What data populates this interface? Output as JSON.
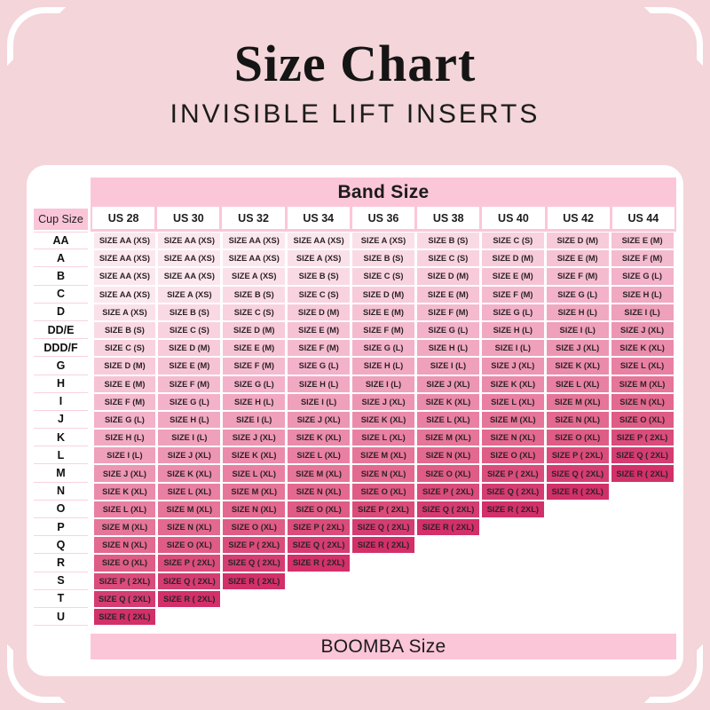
{
  "header": {
    "title": "Size Chart",
    "subtitle": "INVISIBLE LIFT INSERTS"
  },
  "table": {
    "band_size_label": "Band Size",
    "cup_size_label": "Cup Size",
    "boomba_size_label": "BOOMBA Size",
    "columns": [
      "US 28",
      "US 30",
      "US 32",
      "US 34",
      "US 36",
      "US 38",
      "US 40",
      "US 42",
      "US 44"
    ],
    "rows": [
      {
        "label": "AA",
        "cells": [
          "SIZE AA (XS)",
          "SIZE AA (XS)",
          "SIZE AA (XS)",
          "SIZE AA (XS)",
          "SIZE A (XS)",
          "SIZE B (S)",
          "SIZE C (S)",
          "SIZE D (M)",
          "SIZE E (M)"
        ]
      },
      {
        "label": "A",
        "cells": [
          "SIZE AA (XS)",
          "SIZE AA (XS)",
          "SIZE AA (XS)",
          "SIZE A (XS)",
          "SIZE B (S)",
          "SIZE C (S)",
          "SIZE D (M)",
          "SIZE E (M)",
          "SIZE F (M)"
        ]
      },
      {
        "label": "B",
        "cells": [
          "SIZE AA (XS)",
          "SIZE AA (XS)",
          "SIZE A (XS)",
          "SIZE B (S)",
          "SIZE C (S)",
          "SIZE D (M)",
          "SIZE E (M)",
          "SIZE F (M)",
          "SIZE G (L)"
        ]
      },
      {
        "label": "C",
        "cells": [
          "SIZE AA (XS)",
          "SIZE A (XS)",
          "SIZE B (S)",
          "SIZE C (S)",
          "SIZE D (M)",
          "SIZE E (M)",
          "SIZE F (M)",
          "SIZE G (L)",
          "SIZE H (L)"
        ]
      },
      {
        "label": "D",
        "cells": [
          "SIZE A (XS)",
          "SIZE B (S)",
          "SIZE C (S)",
          "SIZE D (M)",
          "SIZE E (M)",
          "SIZE F (M)",
          "SIZE G (L)",
          "SIZE H (L)",
          "SIZE I (L)"
        ]
      },
      {
        "label": "DD/E",
        "cells": [
          "SIZE B (S)",
          "SIZE C (S)",
          "SIZE D (M)",
          "SIZE E (M)",
          "SIZE F (M)",
          "SIZE G (L)",
          "SIZE H (L)",
          "SIZE I (L)",
          "SIZE J (XL)"
        ]
      },
      {
        "label": "DDD/F",
        "cells": [
          "SIZE C (S)",
          "SIZE D (M)",
          "SIZE E (M)",
          "SIZE F (M)",
          "SIZE G (L)",
          "SIZE H (L)",
          "SIZE I (L)",
          "SIZE J (XL)",
          "SIZE K (XL)"
        ]
      },
      {
        "label": "G",
        "cells": [
          "SIZE D (M)",
          "SIZE E (M)",
          "SIZE F (M)",
          "SIZE G (L)",
          "SIZE H (L)",
          "SIZE I (L)",
          "SIZE J (XL)",
          "SIZE K (XL)",
          "SIZE L (XL)"
        ]
      },
      {
        "label": "H",
        "cells": [
          "SIZE E (M)",
          "SIZE F (M)",
          "SIZE G (L)",
          "SIZE H (L)",
          "SIZE I (L)",
          "SIZE J (XL)",
          "SIZE K (XL)",
          "SIZE L (XL)",
          "SIZE M (XL)"
        ]
      },
      {
        "label": "I",
        "cells": [
          "SIZE F (M)",
          "SIZE G (L)",
          "SIZE H (L)",
          "SIZE I (L)",
          "SIZE J (XL)",
          "SIZE K (XL)",
          "SIZE L (XL)",
          "SIZE M (XL)",
          "SIZE N (XL)"
        ]
      },
      {
        "label": "J",
        "cells": [
          "SIZE G (L)",
          "SIZE H (L)",
          "SIZE I (L)",
          "SIZE J (XL)",
          "SIZE K (XL)",
          "SIZE L (XL)",
          "SIZE M (XL)",
          "SIZE N (XL)",
          "SIZE O (XL)"
        ]
      },
      {
        "label": "K",
        "cells": [
          "SIZE H (L)",
          "SIZE I (L)",
          "SIZE J (XL)",
          "SIZE K (XL)",
          "SIZE L (XL)",
          "SIZE M (XL)",
          "SIZE N (XL)",
          "SIZE O (XL)",
          "SIZE P ( 2XL)"
        ]
      },
      {
        "label": "L",
        "cells": [
          "SIZE I (L)",
          "SIZE J (XL)",
          "SIZE K (XL)",
          "SIZE L (XL)",
          "SIZE M (XL)",
          "SIZE N (XL)",
          "SIZE O (XL)",
          "SIZE P ( 2XL)",
          "SIZE Q ( 2XL)"
        ]
      },
      {
        "label": "M",
        "cells": [
          "SIZE J (XL)",
          "SIZE K (XL)",
          "SIZE L (XL)",
          "SIZE M (XL)",
          "SIZE N (XL)",
          "SIZE O (XL)",
          "SIZE P ( 2XL)",
          "SIZE Q ( 2XL)",
          "SIZE R ( 2XL)"
        ]
      },
      {
        "label": "N",
        "cells": [
          "SIZE K (XL)",
          "SIZE L (XL)",
          "SIZE M (XL)",
          "SIZE N (XL)",
          "SIZE O (XL)",
          "SIZE P ( 2XL)",
          "SIZE Q ( 2XL)",
          "SIZE R ( 2XL)",
          ""
        ]
      },
      {
        "label": "O",
        "cells": [
          "SIZE L (XL)",
          "SIZE M (XL)",
          "SIZE N (XL)",
          "SIZE O (XL)",
          "SIZE P ( 2XL)",
          "SIZE Q ( 2XL)",
          "SIZE R ( 2XL)",
          "",
          ""
        ]
      },
      {
        "label": "P",
        "cells": [
          "SIZE M (XL)",
          "SIZE N (XL)",
          "SIZE O (XL)",
          "SIZE P ( 2XL)",
          "SIZE Q ( 2XL)",
          "SIZE R ( 2XL)",
          "",
          "",
          ""
        ]
      },
      {
        "label": "Q",
        "cells": [
          "SIZE N (XL)",
          "SIZE O (XL)",
          "SIZE P ( 2XL)",
          "SIZE Q ( 2XL)",
          "SIZE R ( 2XL)",
          "",
          "",
          "",
          ""
        ]
      },
      {
        "label": "R",
        "cells": [
          "SIZE O (XL)",
          "SIZE P ( 2XL)",
          "SIZE Q ( 2XL)",
          "SIZE R ( 2XL)",
          "",
          "",
          "",
          "",
          ""
        ]
      },
      {
        "label": "S",
        "cells": [
          "SIZE P ( 2XL)",
          "SIZE Q ( 2XL)",
          "SIZE R ( 2XL)",
          "",
          "",
          "",
          "",
          "",
          ""
        ]
      },
      {
        "label": "T",
        "cells": [
          "SIZE Q ( 2XL)",
          "SIZE R ( 2XL)",
          "",
          "",
          "",
          "",
          "",
          "",
          ""
        ]
      },
      {
        "label": "U",
        "cells": [
          "SIZE R ( 2XL)",
          "",
          "",
          "",
          "",
          "",
          "",
          "",
          ""
        ]
      }
    ],
    "size_colors": {
      "SIZE AA (XS)": "#FBE8EE",
      "SIZE A (XS)": "#FAE1E9",
      "SIZE B (S)": "#F9DAE4",
      "SIZE C (S)": "#F8D3DF",
      "SIZE D (M)": "#F7CBDA",
      "SIZE E (M)": "#F6C3D5",
      "SIZE F (M)": "#F4BBCF",
      "SIZE G (L)": "#F3B2C9",
      "SIZE H (L)": "#F1A9C2",
      "SIZE I (L)": "#EFA0BB",
      "SIZE J (XL)": "#ED96B4",
      "SIZE K (XL)": "#EB8BAC",
      "SIZE L (XL)": "#E980A3",
      "SIZE M (XL)": "#E6759A",
      "SIZE N (XL)": "#E36990",
      "SIZE O (XL)": "#DF5C86",
      "SIZE P ( 2XL)": "#DA4C7B",
      "SIZE Q ( 2XL)": "#D43D71",
      "SIZE R ( 2XL)": "#D23068"
    }
  },
  "colors": {
    "page_background": "#F4D5D9",
    "card_background": "#FFFFFF",
    "band_pink": "#FCC6D9",
    "cup_size_pink": "#FAC5D8",
    "row_separator_pink": "#F8D3DF",
    "text_dark": "#1B1B1B"
  }
}
